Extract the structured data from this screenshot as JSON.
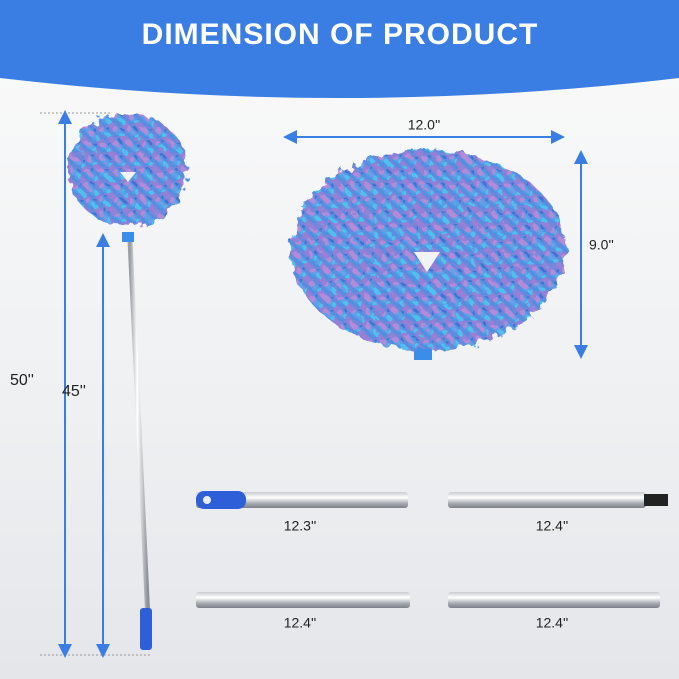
{
  "header": {
    "title": "DIMENSION OF PRODUCT"
  },
  "head_dimensions": {
    "width": "12.0''",
    "height": "9.0''"
  },
  "total_length": {
    "extended": "50''",
    "pole": "45''"
  },
  "pole_sections": [
    {
      "label": "12.3''"
    },
    {
      "label": "12.4''"
    },
    {
      "label": "12.4''"
    },
    {
      "label": "12.4''"
    }
  ]
}
